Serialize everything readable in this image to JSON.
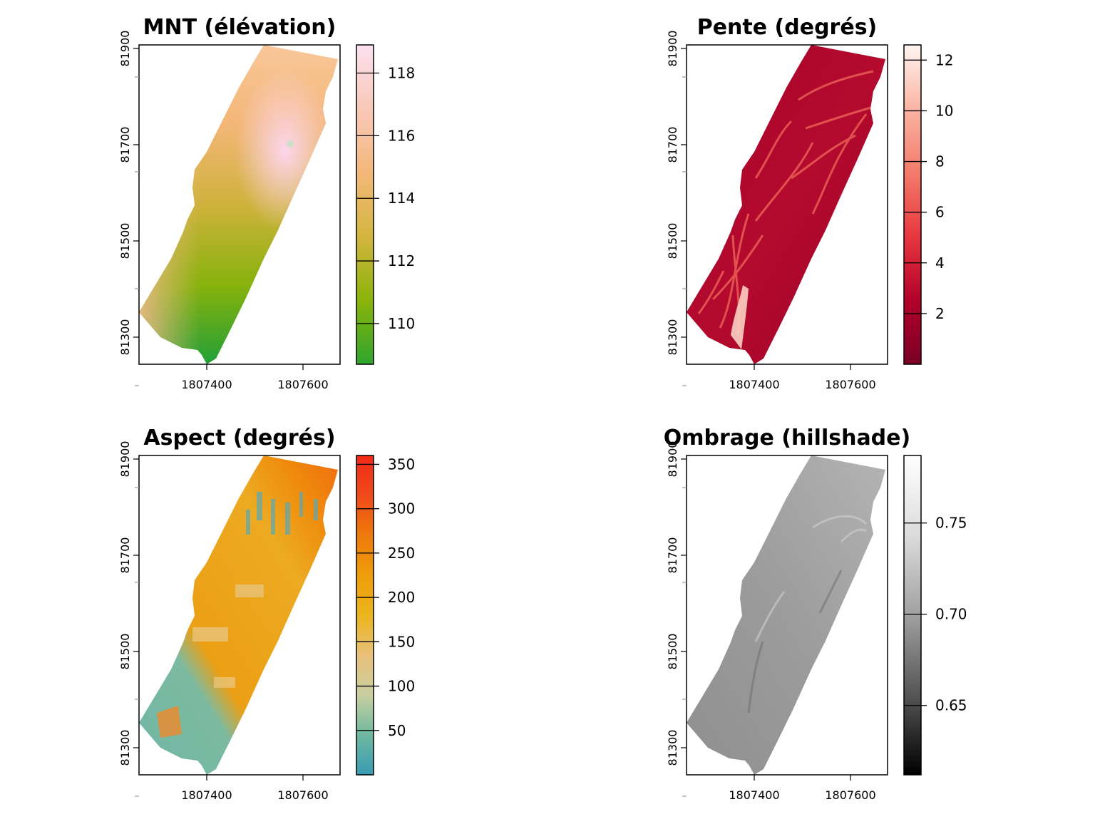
{
  "chart_data": [
    {
      "type": "heatmap",
      "title": "MNT (élévation)",
      "x_ticks": [
        "1807400",
        "1807600"
      ],
      "y_ticks": [
        "81300",
        "81500",
        "81700",
        "81900"
      ],
      "colorbar": {
        "range": [
          108.7,
          118.9
        ],
        "ticks": [
          "110",
          "112",
          "114",
          "116",
          "118"
        ],
        "tick_values": [
          110,
          112,
          114,
          116,
          118
        ],
        "colors": [
          "#2ea52e",
          "#8ab40a",
          "#d4b53f",
          "#f4b879",
          "#f8c8b8",
          "#fde0ef"
        ]
      }
    },
    {
      "type": "heatmap",
      "title": "Pente (degrés)",
      "x_ticks": [
        "1807400",
        "1807600"
      ],
      "y_ticks": [
        "81300",
        "81500",
        "81700",
        "81900"
      ],
      "colorbar": {
        "range": [
          0,
          12.6
        ],
        "ticks": [
          "2",
          "4",
          "6",
          "8",
          "10",
          "12"
        ],
        "tick_values": [
          2,
          4,
          6,
          8,
          10,
          12
        ],
        "colors": [
          "#7a0026",
          "#b3002a",
          "#e8373f",
          "#f57a6b",
          "#fbb4a3",
          "#fff5f0"
        ]
      }
    },
    {
      "type": "heatmap",
      "title": "Aspect (degrés)",
      "x_ticks": [
        "1807400",
        "1807600"
      ],
      "y_ticks": [
        "81300",
        "81500",
        "81700",
        "81900"
      ],
      "colorbar": {
        "range": [
          0,
          360
        ],
        "ticks": [
          "50",
          "100",
          "150",
          "200",
          "250",
          "300",
          "350"
        ],
        "tick_values": [
          50,
          100,
          150,
          200,
          250,
          300,
          350
        ],
        "colors": [
          "#3a9bb5",
          "#6fb8a0",
          "#c8cfa0",
          "#e9c07a",
          "#ebb51c",
          "#ee9d0a",
          "#ee7a0a",
          "#f04a1a",
          "#f02a18"
        ]
      }
    },
    {
      "type": "heatmap",
      "title": "Ombrage (hillshade)",
      "x_ticks": [
        "1807400",
        "1807600"
      ],
      "y_ticks": [
        "81300",
        "81500",
        "81700",
        "81900"
      ],
      "colorbar": {
        "range": [
          0.612,
          0.787
        ],
        "ticks": [
          "0.65",
          "0.70",
          "0.75"
        ],
        "tick_values": [
          0.65,
          0.7,
          0.75
        ],
        "colors": [
          "#000000",
          "#555555",
          "#a0a0a0",
          "#dcdcdc",
          "#ffffff"
        ]
      }
    }
  ]
}
